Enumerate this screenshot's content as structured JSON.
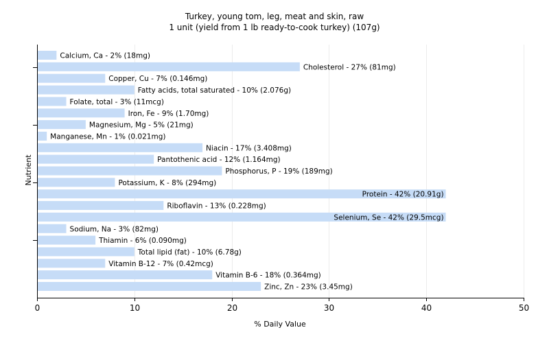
{
  "chart_data": {
    "type": "bar",
    "orientation": "horizontal",
    "title": "Turkey, young tom, leg, meat and skin, raw",
    "subtitle": "1 unit (yield from 1 lb ready-to-cook turkey) (107g)",
    "xlabel": "% Daily Value",
    "ylabel": "Nutrient",
    "xlim": [
      0,
      50
    ],
    "xticks": [
      0,
      10,
      20,
      30,
      40,
      50
    ],
    "grid": true,
    "bar_color": "#c6dcf7",
    "categories": [
      "Calcium, Ca",
      "Cholesterol",
      "Copper, Cu",
      "Fatty acids, total saturated",
      "Folate, total",
      "Iron, Fe",
      "Magnesium, Mg",
      "Manganese, Mn",
      "Niacin",
      "Pantothenic acid",
      "Phosphorus, P",
      "Potassium, K",
      "Protein",
      "Riboflavin",
      "Selenium, Se",
      "Sodium, Na",
      "Thiamin",
      "Total lipid (fat)",
      "Vitamin B-12",
      "Vitamin B-6",
      "Zinc, Zn"
    ],
    "values": [
      2,
      27,
      7,
      10,
      3,
      9,
      5,
      1,
      17,
      12,
      19,
      8,
      42,
      13,
      42,
      3,
      6,
      10,
      7,
      18,
      23
    ],
    "labels": [
      "Calcium, Ca - 2% (18mg)",
      "Cholesterol - 27% (81mg)",
      "Copper, Cu - 7% (0.146mg)",
      "Fatty acids, total saturated - 10% (2.076g)",
      "Folate, total - 3% (11mcg)",
      "Iron, Fe - 9% (1.70mg)",
      "Magnesium, Mg - 5% (21mg)",
      "Manganese, Mn - 1% (0.021mg)",
      "Niacin - 17% (3.408mg)",
      "Pantothenic acid - 12% (1.164mg)",
      "Phosphorus, P - 19% (189mg)",
      "Potassium, K - 8% (294mg)",
      "Protein - 42% (20.91g)",
      "Riboflavin - 13% (0.228mg)",
      "Selenium, Se - 42% (29.5mcg)",
      "Sodium, Na - 3% (82mg)",
      "Thiamin - 6% (0.090mg)",
      "Total lipid (fat) - 10% (6.78g)",
      "Vitamin B-12 - 7% (0.42mcg)",
      "Vitamin B-6 - 18% (0.364mg)",
      "Zinc, Zn - 23% (3.45mg)"
    ]
  }
}
